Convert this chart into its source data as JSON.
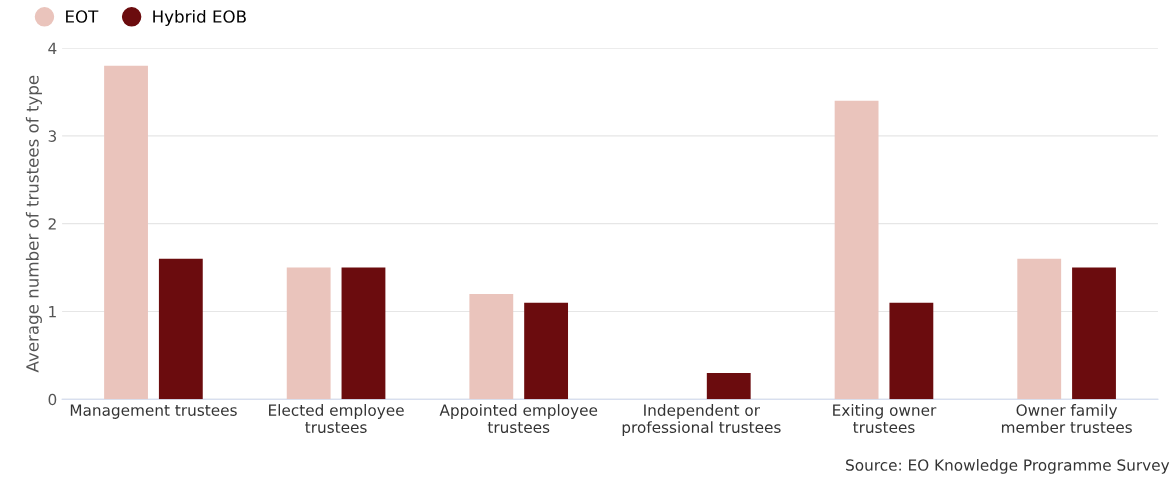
{
  "chart_data": {
    "type": "bar",
    "ylabel": "Average number of trustees of type",
    "categories": [
      "Management trustees",
      "Elected employee\ntrustees",
      "Appointed employee\ntrustees",
      "Independent or\nprofessional trustees",
      "Exiting owner\ntrustees",
      "Owner family\nmember trustees"
    ],
    "series": [
      {
        "name": "EOT",
        "color": "#eac4bc",
        "values": [
          3.8,
          1.5,
          1.2,
          null,
          3.4,
          1.6
        ]
      },
      {
        "name": "Hybrid EOB",
        "color": "#6b0c0e",
        "values": [
          1.6,
          1.5,
          1.1,
          0.3,
          1.1,
          1.5
        ]
      }
    ],
    "ylim": [
      0,
      4
    ],
    "yticks": [
      0,
      1,
      2,
      3,
      4
    ],
    "grid": "y",
    "legend": "top left",
    "annotations": [
      "Source: EO Knowledge Programme Survey"
    ]
  }
}
